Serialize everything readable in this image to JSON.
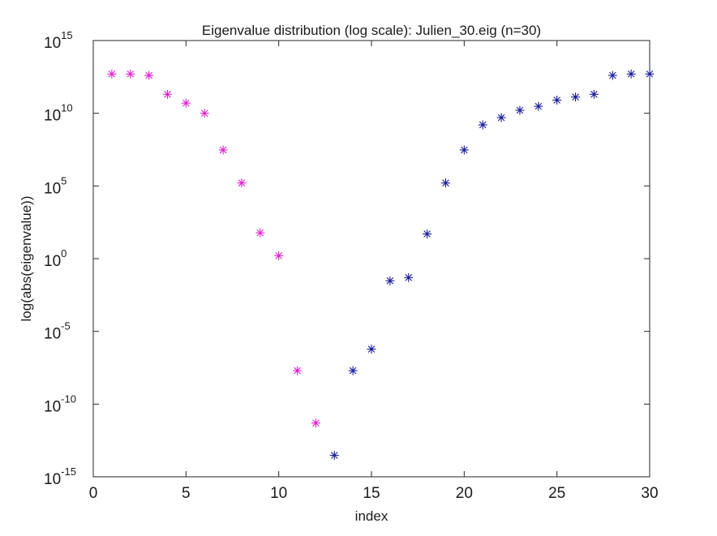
{
  "chart_data": {
    "type": "scatter",
    "title": "Eigenvalue distribution (log scale): Julien_30.eig (n=30)",
    "xlabel": "index",
    "ylabel": "log(abs(eigenvalue))",
    "xlim": [
      0,
      30
    ],
    "ylim": [
      1e-15,
      1000000000000000.0
    ],
    "yscale": "log",
    "marker": "asterisk",
    "grid": false,
    "x_ticks": [
      "0",
      "5",
      "10",
      "15",
      "20",
      "25",
      "30"
    ],
    "y_ticks": [
      {
        "base": "10",
        "exp": "-15"
      },
      {
        "base": "10",
        "exp": "-10"
      },
      {
        "base": "10",
        "exp": "-5"
      },
      {
        "base": "10",
        "exp": "0"
      },
      {
        "base": "10",
        "exp": "5"
      },
      {
        "base": "10",
        "exp": "10"
      },
      {
        "base": "10",
        "exp": "15"
      }
    ],
    "series": [
      {
        "color": "#e020d0",
        "x": [
          1,
          2,
          3,
          4,
          5,
          6,
          7,
          8,
          9,
          10,
          11,
          12
        ],
        "y": [
          5000000000000.0,
          5000000000000.0,
          4000000000000.0,
          200000000000.0,
          50000000000.0,
          10000000000.0,
          30000000.0,
          160000.0,
          60.0,
          1.6,
          2e-08,
          5e-12
        ]
      },
      {
        "color": "#1a1a9a",
        "x": [
          13,
          14,
          15,
          16,
          17,
          18,
          19,
          20,
          21,
          22,
          23,
          24,
          25,
          26,
          27,
          28,
          29,
          30
        ],
        "y": [
          3e-14,
          2e-08,
          6e-07,
          0.03,
          0.05,
          50.0,
          160000.0,
          30000000.0,
          1600000000.0,
          5000000000.0,
          16000000000.0,
          30000000000.0,
          80000000000.0,
          130000000000.0,
          200000000000.0,
          4000000000000.0,
          5000000000000.0,
          5000000000000.0
        ]
      }
    ]
  }
}
